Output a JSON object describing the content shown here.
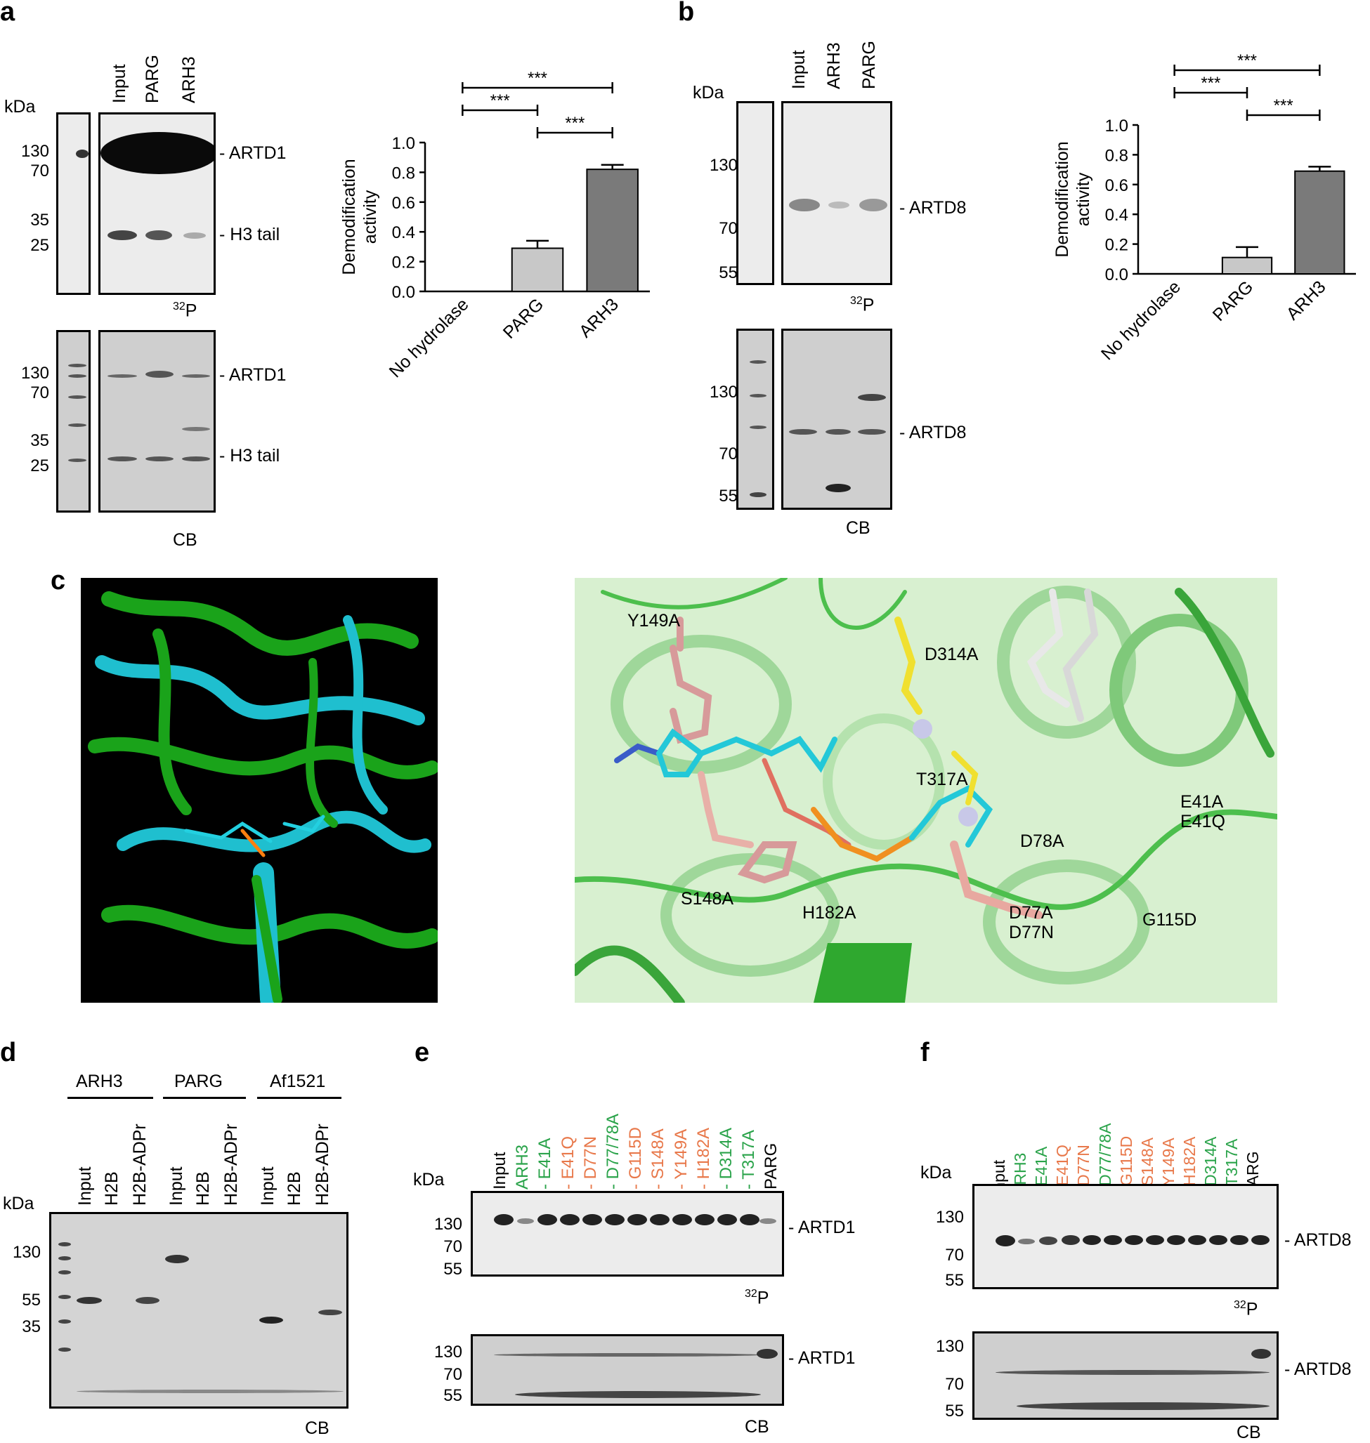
{
  "panels": {
    "a": "a",
    "b": "b",
    "c": "c",
    "d": "d",
    "e": "e",
    "f": "f"
  },
  "common": {
    "kda": "kDa",
    "p32_sup": "32",
    "p32": "P",
    "cb": "CB",
    "dash": "-"
  },
  "panel_a": {
    "lanes": [
      "Input",
      "PARG",
      "ARH3"
    ],
    "mw_top": [
      "130",
      "70",
      "35",
      "25"
    ],
    "mw_bottom": [
      "130",
      "70",
      "35",
      "25"
    ],
    "right_top": [
      "- ARTD1",
      "- H3 tail"
    ],
    "right_bottom": [
      "- ARTD1",
      "- H3 tail"
    ]
  },
  "panel_b": {
    "lanes": [
      "Input",
      "ARH3",
      "PARG"
    ],
    "mw_top": [
      "130",
      "70",
      "55"
    ],
    "mw_bottom": [
      "130",
      "70",
      "55"
    ],
    "right_top": [
      "- ARTD8"
    ],
    "right_bottom": [
      "- ARTD8"
    ]
  },
  "chart_data": [
    {
      "type": "bar",
      "categories": [
        "No hydrolase",
        "PARG",
        "ARH3"
      ],
      "values": [
        0.0,
        0.29,
        0.82
      ],
      "errors": [
        0.0,
        0.05,
        0.03
      ],
      "colors": [
        "#ffffff",
        "#c8c8c8",
        "#7a7a7a"
      ],
      "ylabel": "Demodification activity",
      "ylim": [
        0,
        1.0
      ],
      "yticks": [
        "0.0",
        "0.2",
        "0.4",
        "0.6",
        "0.8",
        "1.0"
      ],
      "significance": [
        "***",
        "***",
        "***"
      ]
    },
    {
      "type": "bar",
      "categories": [
        "No hydrolase",
        "PARG",
        "ARH3"
      ],
      "values": [
        0.0,
        0.11,
        0.69
      ],
      "errors": [
        0.0,
        0.07,
        0.03
      ],
      "colors": [
        "#ffffff",
        "#c8c8c8",
        "#7a7a7a"
      ],
      "ylabel": "Demodification activity",
      "ylim": [
        0,
        1.0
      ],
      "yticks": [
        "0.0",
        "0.2",
        "0.4",
        "0.6",
        "0.8",
        "1.0"
      ],
      "significance": [
        "***",
        "***",
        "***"
      ]
    }
  ],
  "panel_c": {
    "labels": [
      "Y149A",
      "D314A",
      "T317A",
      "E41A",
      "E41Q",
      "D78A",
      "S148A",
      "H182A",
      "D77A",
      "D77N",
      "G115D"
    ]
  },
  "panel_d": {
    "groups": [
      "ARH3",
      "PARG",
      "Af1521"
    ],
    "lanes": [
      "Input",
      "H2B",
      "H2B-ADPr",
      "Input",
      "H2B",
      "H2B-ADPr",
      "Input",
      "H2B",
      "H2B-ADPr"
    ],
    "mw": [
      "130",
      "55",
      "35"
    ]
  },
  "panel_e": {
    "lanes": [
      {
        "t": "Input",
        "c": "#000000"
      },
      {
        "t": "ARH3",
        "c": "#2aa34a"
      },
      {
        "t": "- E41A",
        "c": "#2aa34a"
      },
      {
        "t": "- E41Q",
        "c": "#e8784a"
      },
      {
        "t": "- D77N",
        "c": "#e8784a"
      },
      {
        "t": "- D77/78A",
        "c": "#2aa34a"
      },
      {
        "t": "- G115D",
        "c": "#e8784a"
      },
      {
        "t": "- S148A",
        "c": "#e8784a"
      },
      {
        "t": "- Y149A",
        "c": "#e8784a"
      },
      {
        "t": "- H182A",
        "c": "#e8784a"
      },
      {
        "t": "- D314A",
        "c": "#2aa34a"
      },
      {
        "t": "- T317A",
        "c": "#2aa34a"
      },
      {
        "t": "PARG",
        "c": "#000000"
      }
    ],
    "mw_top": [
      "130",
      "70",
      "55"
    ],
    "mw_bottom": [
      "130",
      "70",
      "55"
    ],
    "right_top": "- ARTD1",
    "right_bottom": "- ARTD1"
  },
  "panel_f": {
    "mw_top": [
      "130",
      "70",
      "55"
    ],
    "mw_bottom": [
      "130",
      "70",
      "55"
    ],
    "right_top": "- ARTD8",
    "right_bottom": "- ARTD8"
  }
}
